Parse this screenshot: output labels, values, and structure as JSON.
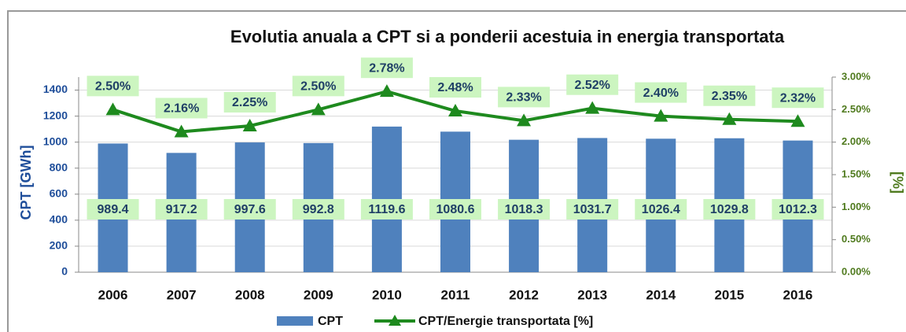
{
  "chart_data": {
    "type": "bar",
    "title": "Evolutia anuala a CPT si a ponderii acestuia in energia transportata",
    "ylabel": "CPT [GWh]",
    "y2label": "[%]",
    "categories": [
      "2006",
      "2007",
      "2008",
      "2009",
      "2010",
      "2011",
      "2012",
      "2013",
      "2014",
      "2015",
      "2016"
    ],
    "series": [
      {
        "name": "CPT",
        "type": "bar",
        "color": "#4f81bd",
        "values": [
          989.4,
          917.2,
          997.6,
          992.8,
          1119.6,
          1080.6,
          1018.3,
          1031.7,
          1026.4,
          1029.8,
          1012.3
        ]
      },
      {
        "name": "CPT/Energie transportata [%]",
        "type": "line",
        "axis": "y2",
        "color": "#1e8a1e",
        "values": [
          2.5,
          2.16,
          2.25,
          2.5,
          2.78,
          2.48,
          2.33,
          2.52,
          2.4,
          2.35,
          2.32
        ],
        "value_labels": [
          "2.50%",
          "2.16%",
          "2.25%",
          "2.50%",
          "2.78%",
          "2.48%",
          "2.33%",
          "2.52%",
          "2.40%",
          "2.35%",
          "2.32%"
        ]
      }
    ],
    "ylim": [
      0,
      1500
    ],
    "yticks": [
      0,
      200,
      400,
      600,
      800,
      1000,
      1200,
      1400
    ],
    "y2lim": [
      0,
      3
    ],
    "y2ticks": [
      {
        "value": 0,
        "label": "0.00%"
      },
      {
        "value": 0.5,
        "label": "0.50%"
      },
      {
        "value": 1,
        "label": "1.00%"
      },
      {
        "value": 1.5,
        "label": "1.50%"
      },
      {
        "value": 2,
        "label": "2.00%"
      },
      {
        "value": 2.5,
        "label": "2.50%"
      },
      {
        "value": 3,
        "label": "3.00%"
      }
    ],
    "grid": true,
    "legend": "bottom"
  }
}
